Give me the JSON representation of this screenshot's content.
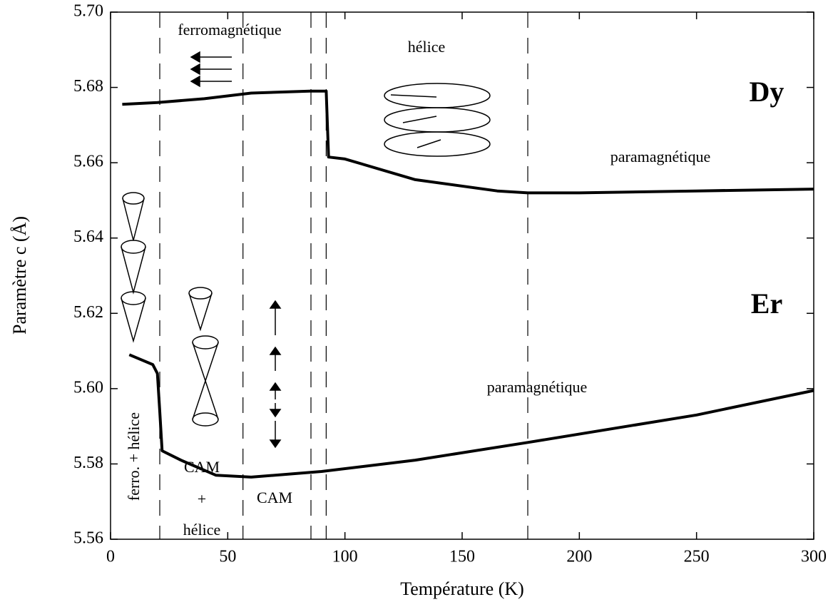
{
  "chart_data": {
    "type": "line",
    "x_label": "Température (K)",
    "y_label": "Paramètre c (Å)",
    "series": [
      {
        "name": "Dy",
        "color": "#000000",
        "x": [
          5,
          20,
          40,
          60,
          85,
          92,
          93,
          100,
          130,
          165,
          178,
          200,
          250,
          300
        ],
        "values": [
          5.6755,
          5.676,
          5.677,
          5.6785,
          5.679,
          5.679,
          5.6615,
          5.661,
          5.6555,
          5.6525,
          5.652,
          5.652,
          5.6525,
          5.653
        ]
      },
      {
        "name": "Er",
        "color": "#000000",
        "x": [
          8,
          18,
          20,
          21,
          22,
          30,
          45,
          60,
          90,
          130,
          178,
          250,
          300
        ],
        "values": [
          5.609,
          5.6064,
          5.604,
          5.594,
          5.5835,
          5.581,
          5.577,
          5.5765,
          5.578,
          5.581,
          5.5857,
          5.593,
          5.5995
        ]
      }
    ],
    "boundaries": [
      21,
      56.5,
      85.5,
      92,
      178
    ],
    "annotations": [
      "ferromagnétique",
      "hélice",
      "paramagnétique",
      "paramagnétique",
      "ferro. + hélice",
      [
        "CAM",
        "+",
        "hélice"
      ],
      "CAM"
    ],
    "xlim": [
      0,
      300
    ],
    "xticks": [
      0,
      50,
      100,
      150,
      200,
      250,
      300
    ],
    "ylim": [
      5.56,
      5.7
    ],
    "yticks": [
      5.56,
      5.58,
      {
        "value": 5.6,
        "label": "5.60"
      },
      5.62,
      5.64,
      5.66,
      5.68,
      {
        "value": 5.7,
        "label": "5.70"
      }
    ]
  }
}
